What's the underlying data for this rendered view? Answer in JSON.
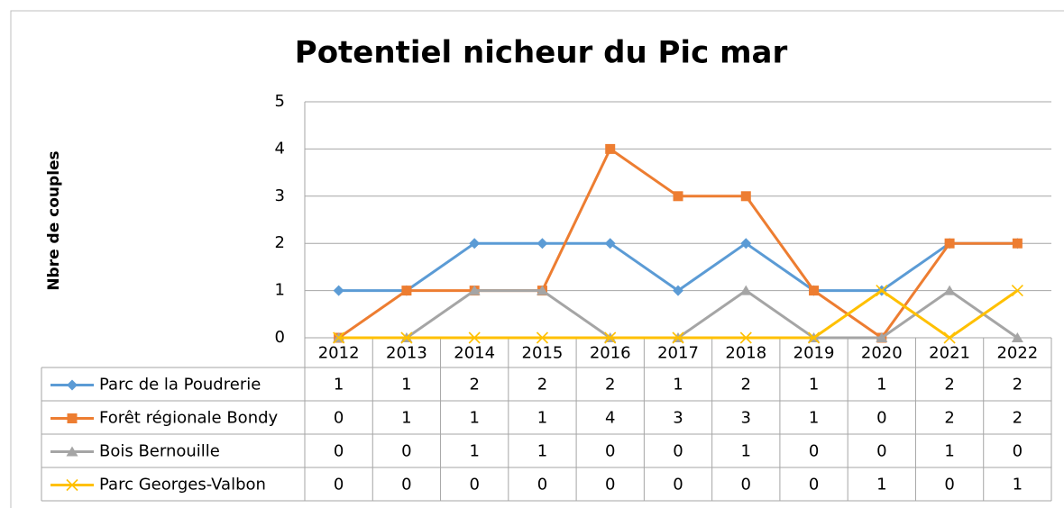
{
  "chart_data": {
    "type": "line",
    "title": "Potentiel nicheur du Pic mar",
    "y_label": "Nbre  de couples",
    "categories": [
      "2012",
      "2013",
      "2014",
      "2015",
      "2016",
      "2017",
      "2018",
      "2019",
      "2020",
      "2021",
      "2022"
    ],
    "series": [
      {
        "name": "Parc de la Poudrerie",
        "color": "#5b9bd5",
        "marker": "diamond",
        "values": [
          1,
          1,
          2,
          2,
          2,
          1,
          2,
          1,
          1,
          2,
          2
        ]
      },
      {
        "name": "Forêt régionale Bondy",
        "color": "#ed7d31",
        "marker": "square",
        "values": [
          0,
          1,
          1,
          1,
          4,
          3,
          3,
          1,
          0,
          2,
          2
        ]
      },
      {
        "name": "Bois Bernouille",
        "color": "#a5a5a5",
        "marker": "triangle",
        "values": [
          0,
          0,
          1,
          1,
          0,
          0,
          1,
          0,
          0,
          1,
          0
        ]
      },
      {
        "name": "Parc Georges-Valbon",
        "color": "#ffc000",
        "marker": "x",
        "values": [
          0,
          0,
          0,
          0,
          0,
          0,
          0,
          0,
          1,
          0,
          1
        ]
      }
    ],
    "ylim": [
      0,
      5
    ],
    "yticks": [
      0,
      1,
      2,
      3,
      4,
      5
    ],
    "grid": true,
    "data_table": true
  }
}
